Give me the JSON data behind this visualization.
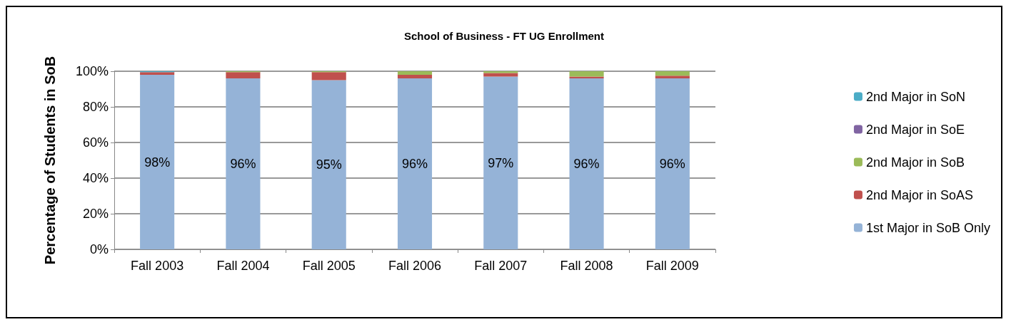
{
  "chart_data": {
    "type": "bar",
    "stacked": true,
    "title": "School of Business - FT UG Enrollment",
    "ylabel": "Percentage of Students in SoB",
    "categories": [
      "Fall 2003",
      "Fall 2004",
      "Fall 2005",
      "Fall 2006",
      "Fall 2007",
      "Fall 2008",
      "Fall 2009"
    ],
    "series": [
      {
        "name": "1st Major in SoB Only",
        "color": "#95b3d7",
        "values": [
          98,
          96,
          95,
          96,
          97,
          96,
          96
        ],
        "value_labels": [
          "98%",
          "96%",
          "95%",
          "96%",
          "97%",
          "96%",
          "96%"
        ]
      },
      {
        "name": "2nd Major in SoAS",
        "color": "#c0504d",
        "values": [
          1.5,
          3.5,
          4.5,
          2,
          2,
          1,
          1.5
        ]
      },
      {
        "name": "2nd Major in SoB",
        "color": "#9bbb59",
        "values": [
          0,
          0.5,
          0.5,
          2,
          1,
          3,
          2.5
        ]
      },
      {
        "name": "2nd Major in SoE",
        "color": "#8064a2",
        "values": [
          null,
          0,
          0,
          0,
          0,
          0,
          0
        ]
      },
      {
        "name": "2nd Major in SoN",
        "color": "#4bacc6",
        "values": [
          0.5,
          0,
          0,
          0,
          0,
          0,
          0
        ]
      }
    ],
    "ylim": [
      0,
      100
    ],
    "yticks": [
      {
        "value": 0,
        "label": "0%"
      },
      {
        "value": 20,
        "label": "20%"
      },
      {
        "value": 40,
        "label": "40%"
      },
      {
        "value": 60,
        "label": "60%"
      },
      {
        "value": 80,
        "label": "80%"
      },
      {
        "value": 100,
        "label": "100%"
      }
    ],
    "grid": "y",
    "legend": "right"
  }
}
